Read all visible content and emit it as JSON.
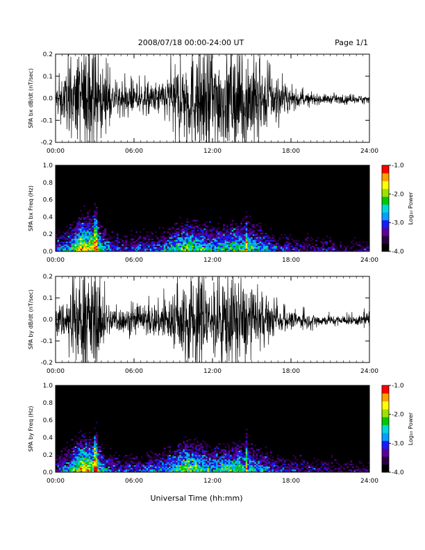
{
  "header": {
    "date_range": "2008/07/18  00:00-24:00 UT",
    "page": "Page 1/1"
  },
  "x_axis_label": "Universal Time (hh:mm)",
  "colorbar_label": "Log₁₀ Power",
  "colors": {
    "colormap": [
      "#000000",
      "#2a0044",
      "#5a0096",
      "#1a1aff",
      "#00a0ff",
      "#00d8d8",
      "#00c800",
      "#a0e000",
      "#ffff00",
      "#ffa000",
      "#ff0000"
    ]
  },
  "chart_data": [
    {
      "type": "line",
      "ylabel": "SPA bx dB/dt (nT/sec)",
      "xlim": [
        "00:00",
        "24:00"
      ],
      "ylim": [
        -0.2,
        0.2
      ],
      "xticks": [
        "00:00",
        "06:00",
        "12:00",
        "18:00",
        "24:00"
      ],
      "yticks": [
        "-0.2",
        "-0.1",
        "0.0",
        "0.1",
        "0.2"
      ],
      "envelope": {
        "hours": [
          0,
          1,
          2,
          3,
          4,
          5,
          6,
          7,
          8,
          9,
          10,
          11,
          12,
          13,
          14,
          15,
          16,
          17,
          18,
          19,
          20,
          21,
          22,
          23,
          24
        ],
        "amplitude": [
          0.05,
          0.12,
          0.2,
          0.2,
          0.08,
          0.06,
          0.05,
          0.06,
          0.07,
          0.12,
          0.18,
          0.2,
          0.2,
          0.18,
          0.2,
          0.2,
          0.12,
          0.07,
          0.04,
          0.025,
          0.02,
          0.018,
          0.015,
          0.015,
          0.02
        ]
      }
    },
    {
      "type": "heatmap",
      "ylabel": "SPA bx Freq (Hz)",
      "xlim": [
        "00:00",
        "24:00"
      ],
      "ylim": [
        0.0,
        1.0
      ],
      "xticks": [
        "00:00",
        "06:00",
        "12:00",
        "18:00",
        "24:00"
      ],
      "yticks": [
        "0.0",
        "0.2",
        "0.4",
        "0.6",
        "0.8",
        "1.0"
      ],
      "colorbar": {
        "range": [
          -4.0,
          -1.0
        ],
        "ticks": [
          "-1.0",
          "-2.0",
          "-3.0",
          "-4.0"
        ]
      },
      "lowfreq_power": {
        "hours": [
          0,
          1,
          2,
          3,
          4,
          5,
          6,
          7,
          8,
          9,
          10,
          11,
          12,
          13,
          14,
          15,
          16,
          17,
          18,
          19,
          20,
          21,
          22,
          23,
          24
        ],
        "log10_power": [
          -3.0,
          -2.5,
          -1.5,
          -1.8,
          -2.8,
          -3.0,
          -3.0,
          -2.9,
          -2.8,
          -2.4,
          -2.0,
          -2.2,
          -2.4,
          -2.3,
          -2.1,
          -2.2,
          -2.6,
          -3.0,
          -3.2,
          -3.3,
          -3.4,
          -3.4,
          -3.5,
          -3.5,
          -3.4
        ]
      }
    },
    {
      "type": "line",
      "ylabel": "SPA by dB/dt (nT/sec)",
      "xlim": [
        "00:00",
        "24:00"
      ],
      "ylim": [
        -0.2,
        0.2
      ],
      "xticks": [
        "00:00",
        "06:00",
        "12:00",
        "18:00",
        "24:00"
      ],
      "yticks": [
        "-0.2",
        "-0.1",
        "0.0",
        "0.1",
        "0.2"
      ],
      "envelope": {
        "hours": [
          0,
          1,
          2,
          3,
          4,
          5,
          6,
          7,
          8,
          9,
          10,
          11,
          12,
          13,
          14,
          15,
          16,
          17,
          18,
          19,
          20,
          21,
          22,
          23,
          24
        ],
        "amplitude": [
          0.05,
          0.1,
          0.2,
          0.2,
          0.07,
          0.05,
          0.05,
          0.06,
          0.08,
          0.1,
          0.2,
          0.2,
          0.14,
          0.2,
          0.18,
          0.12,
          0.08,
          0.05,
          0.035,
          0.03,
          0.025,
          0.02,
          0.02,
          0.02,
          0.03
        ]
      }
    },
    {
      "type": "heatmap",
      "ylabel": "SPA by Freq (Hz)",
      "xlim": [
        "00:00",
        "24:00"
      ],
      "ylim": [
        0.0,
        1.0
      ],
      "xticks": [
        "00:00",
        "06:00",
        "12:00",
        "18:00",
        "24:00"
      ],
      "yticks": [
        "0.0",
        "0.2",
        "0.4",
        "0.6",
        "0.8",
        "1.0"
      ],
      "colorbar": {
        "range": [
          -4.0,
          -1.0
        ],
        "ticks": [
          "-1.0",
          "-2.0",
          "-3.0",
          "-4.0"
        ]
      },
      "lowfreq_power": {
        "hours": [
          0,
          1,
          2,
          3,
          4,
          5,
          6,
          7,
          8,
          9,
          10,
          11,
          12,
          13,
          14,
          15,
          16,
          17,
          18,
          19,
          20,
          21,
          22,
          23,
          24
        ],
        "log10_power": [
          -3.0,
          -2.5,
          -1.5,
          -1.8,
          -2.8,
          -3.0,
          -3.0,
          -2.9,
          -2.7,
          -2.4,
          -1.9,
          -2.1,
          -2.4,
          -2.2,
          -2.1,
          -2.3,
          -2.7,
          -3.0,
          -3.2,
          -3.3,
          -3.4,
          -3.4,
          -3.5,
          -3.5,
          -3.4
        ]
      }
    }
  ]
}
